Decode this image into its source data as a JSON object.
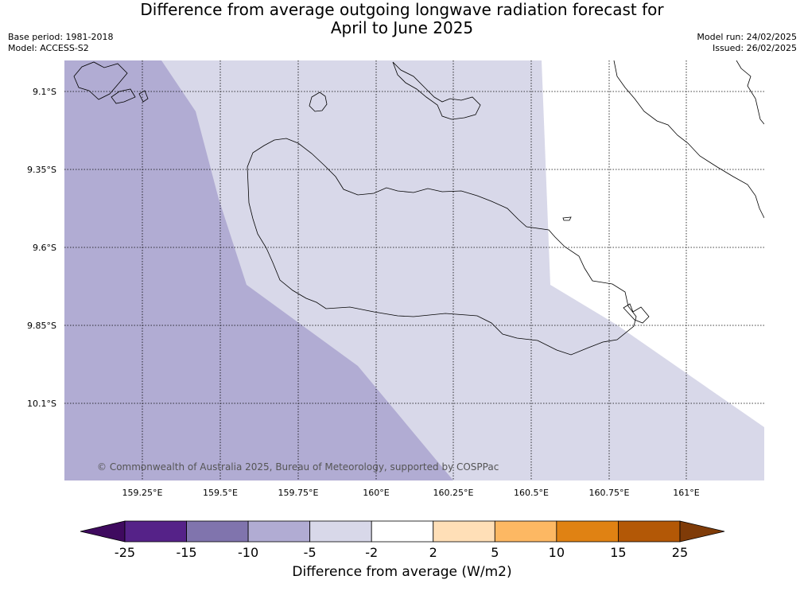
{
  "title_line1": "Difference from average outgoing longwave radiation forecast for",
  "title_line2": "April to June 2025",
  "base_period": "Base period: 1981-2018",
  "model": "Model: ACCESS-S2",
  "model_run": "Model run: 24/02/2025",
  "issued": "Issued: 26/02/2025",
  "credit": "© Commonwealth of Australia 2025, Bureau of Meteorology, supported by COSPPac",
  "lat_labels": [
    "9.1°S",
    "9.35°S",
    "9.6°S",
    "9.85°S",
    "10.1°S"
  ],
  "lon_labels": [
    "159.25°E",
    "159.5°E",
    "159.75°E",
    "160°E",
    "160.25°E",
    "160.5°E",
    "160.75°E",
    "161°E"
  ],
  "map_fill_colors": {
    "-10 to -5": "#b1acd3",
    "-5 to -2": "#d8d8e9",
    "-2 to 2": "#ffffff"
  },
  "colorbar": {
    "ticks": [
      "-25",
      "-15",
      "-10",
      "-5",
      "-2",
      "2",
      "5",
      "10",
      "15",
      "25"
    ],
    "colors": [
      "#3f0a5f",
      "#552288",
      "#8074ad",
      "#b1acd3",
      "#d8d8e9",
      "#ffffff",
      "#ffdfb7",
      "#fdb863",
      "#e08213",
      "#b35806",
      "#7f3b08"
    ],
    "label": "Difference from average (W/m2)"
  }
}
